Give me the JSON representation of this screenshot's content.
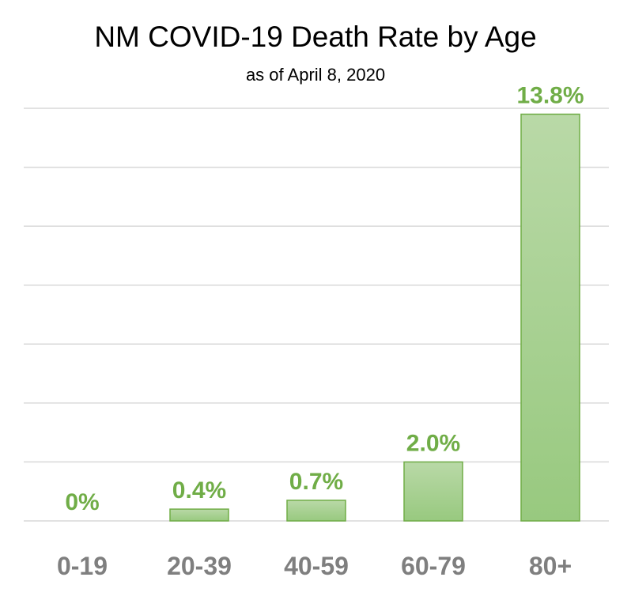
{
  "chart_data": {
    "type": "bar",
    "title": "NM COVID-19 Death Rate by Age",
    "subtitle": "as of April 8, 2020",
    "categories": [
      "0-19",
      "20-39",
      "40-59",
      "60-79",
      "80+"
    ],
    "values": [
      0,
      0.4,
      0.7,
      2.0,
      13.8
    ],
    "data_labels": [
      "0%",
      "0.4%",
      "0.7%",
      "2.0%",
      "13.8%"
    ],
    "xlabel": "",
    "ylabel": "",
    "ylim": [
      0,
      14
    ],
    "gridlines": 7,
    "grid": true,
    "legend": "none",
    "colors": {
      "bar_top": "#b9d9a7",
      "bar_bottom": "#98c97f",
      "bar_border": "#70ad47",
      "label": "#70ad47",
      "tick": "#7f7f7f",
      "grid": "#d9d9d9"
    }
  }
}
